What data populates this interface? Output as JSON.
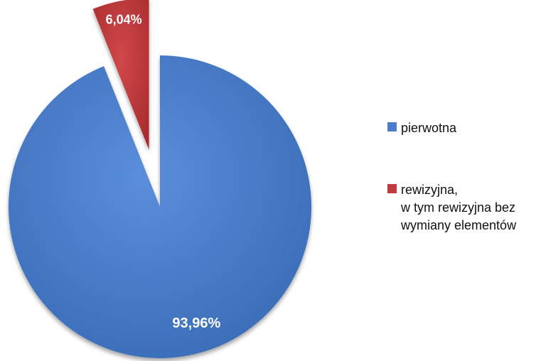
{
  "chart_data": {
    "type": "pie",
    "categories": [
      "pierwotna",
      "rewizyjna,\nw tym rewizyjna bez\nwymiany elementów"
    ],
    "values": [
      93.96,
      6.04
    ],
    "data_labels": [
      "93,96%",
      "6,04%"
    ],
    "colors": [
      "#4a7cc9",
      "#c0393b"
    ],
    "exploded": [
      false,
      true
    ],
    "legend_position": "right",
    "title": ""
  }
}
